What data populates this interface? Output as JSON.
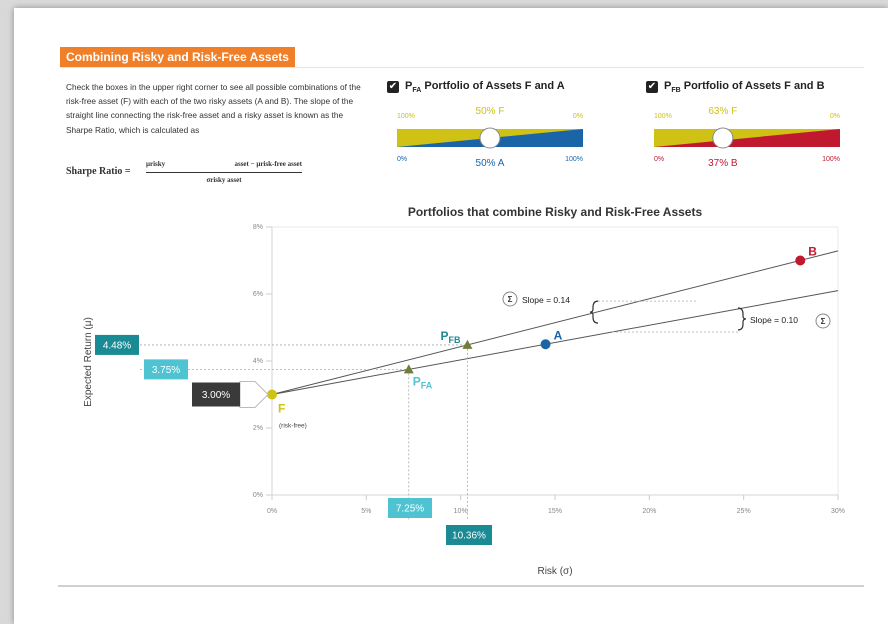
{
  "header": {
    "title": "Combining Risky and Risk-Free Assets"
  },
  "intro": {
    "text": "Check the boxes in the upper right corner to see all possible combinations of the risk-free asset (F) with each of the two risky assets (A and B). The slope of the straight line connecting the risk-free asset and a risky asset is known as the Sharpe Ratio, which is calculated as",
    "sharpe_label": "Sharpe Ratio =",
    "formula_num_left": "μrisky",
    "formula_num_right": "asset − μrisk-free asset",
    "formula_den": "σrisky asset"
  },
  "controls": {
    "fa": {
      "checked": true,
      "check_glyph": "✔",
      "label_main": "P",
      "label_sub": "FA",
      "label_rest": " Portfolio of Assets F and A",
      "left_top": "100%",
      "right_top": "0%",
      "left_bottom": "0%",
      "right_bottom": "100%",
      "value_top": "50% F",
      "value_bottom": "50% A",
      "weight": 0.5,
      "top_color": "#cfc214",
      "bottom_color": "#1a64a8"
    },
    "fb": {
      "checked": true,
      "check_glyph": "✔",
      "label_main": "P",
      "label_sub": "FB",
      "label_rest": " Portfolio of Assets F and B",
      "left_top": "100%",
      "right_top": "0%",
      "left_bottom": "0%",
      "right_bottom": "100%",
      "value_top": "63% F",
      "value_bottom": "37% B",
      "weight": 0.37,
      "top_color": "#cfc214",
      "bottom_color": "#c0182f"
    }
  },
  "chart_data": {
    "type": "scatter",
    "title": "Portfolios that combine Risky and Risk-Free Assets",
    "xlabel": "Risk (σ)",
    "ylabel": "Expected Return (μ)",
    "xlim": [
      0,
      30
    ],
    "ylim": [
      0,
      8
    ],
    "x_ticks": [
      "0%",
      "5%",
      "10%",
      "15%",
      "20%",
      "25%",
      "30%"
    ],
    "y_ticks": [
      "0%",
      "2%",
      "4%",
      "6%",
      "8%"
    ],
    "grid": false,
    "points": [
      {
        "name": "F",
        "sublabel": "(risk-free)",
        "x": 0,
        "y": 3.0,
        "color": "#cfc214"
      },
      {
        "name": "A",
        "x": 14.5,
        "y": 4.5,
        "color": "#1a64a8"
      },
      {
        "name": "B",
        "x": 28,
        "y": 7.0,
        "color": "#c0182f"
      }
    ],
    "portfolios": [
      {
        "name_main": "P",
        "name_sub": "FA",
        "x": 7.25,
        "y": 3.75,
        "color": "#4fc3d2",
        "x_readout": "7.25%",
        "y_readout": "3.75%"
      },
      {
        "name_main": "P",
        "name_sub": "FB",
        "x": 10.36,
        "y": 4.48,
        "color": "#1a8a94",
        "x_readout": "10.36%",
        "y_readout": "4.48%"
      }
    ],
    "lines": [
      {
        "from": [
          0,
          3.0
        ],
        "slope": 0.1034
      },
      {
        "from": [
          0,
          3.0
        ],
        "slope": 0.1429
      }
    ],
    "rf_readout": "3.00%",
    "slope_annotations": [
      {
        "text": "Slope = 0.14",
        "icon": "Σ"
      },
      {
        "text": "Slope = 0.10",
        "icon": "Σ"
      }
    ]
  }
}
